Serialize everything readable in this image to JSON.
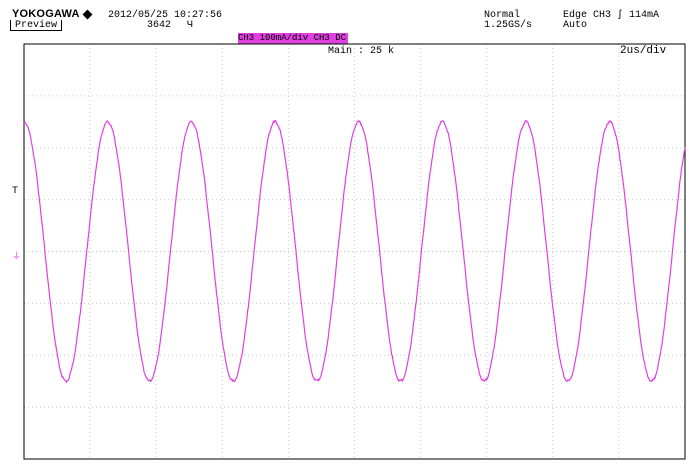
{
  "header": {
    "brand": "YOKOGAWA",
    "preview_label": "Preview",
    "date_time": "2012/05/25 10:27:56",
    "acq_count": "3642",
    "acq_symbol": "Ч",
    "mode": "Normal",
    "sample_rate": "1.25GS/s",
    "trigger_info": "Edge CH3 ʃ 114mA",
    "trigger_mode": "Auto"
  },
  "display": {
    "channel_label": "CH3 100mA/div CH3 DC",
    "main_label": "Main : 25 k",
    "timebase": "2us/div",
    "trigger_marker": "T",
    "ground_marker": "⏚"
  },
  "colors": {
    "trace": "#e040e0",
    "grid": "#c8c8c8",
    "frame": "#000000"
  },
  "waveform": {
    "cycles_per_screen": 7.9,
    "phase_start_deg": 90,
    "amplitude_divisions": 2.5
  }
}
